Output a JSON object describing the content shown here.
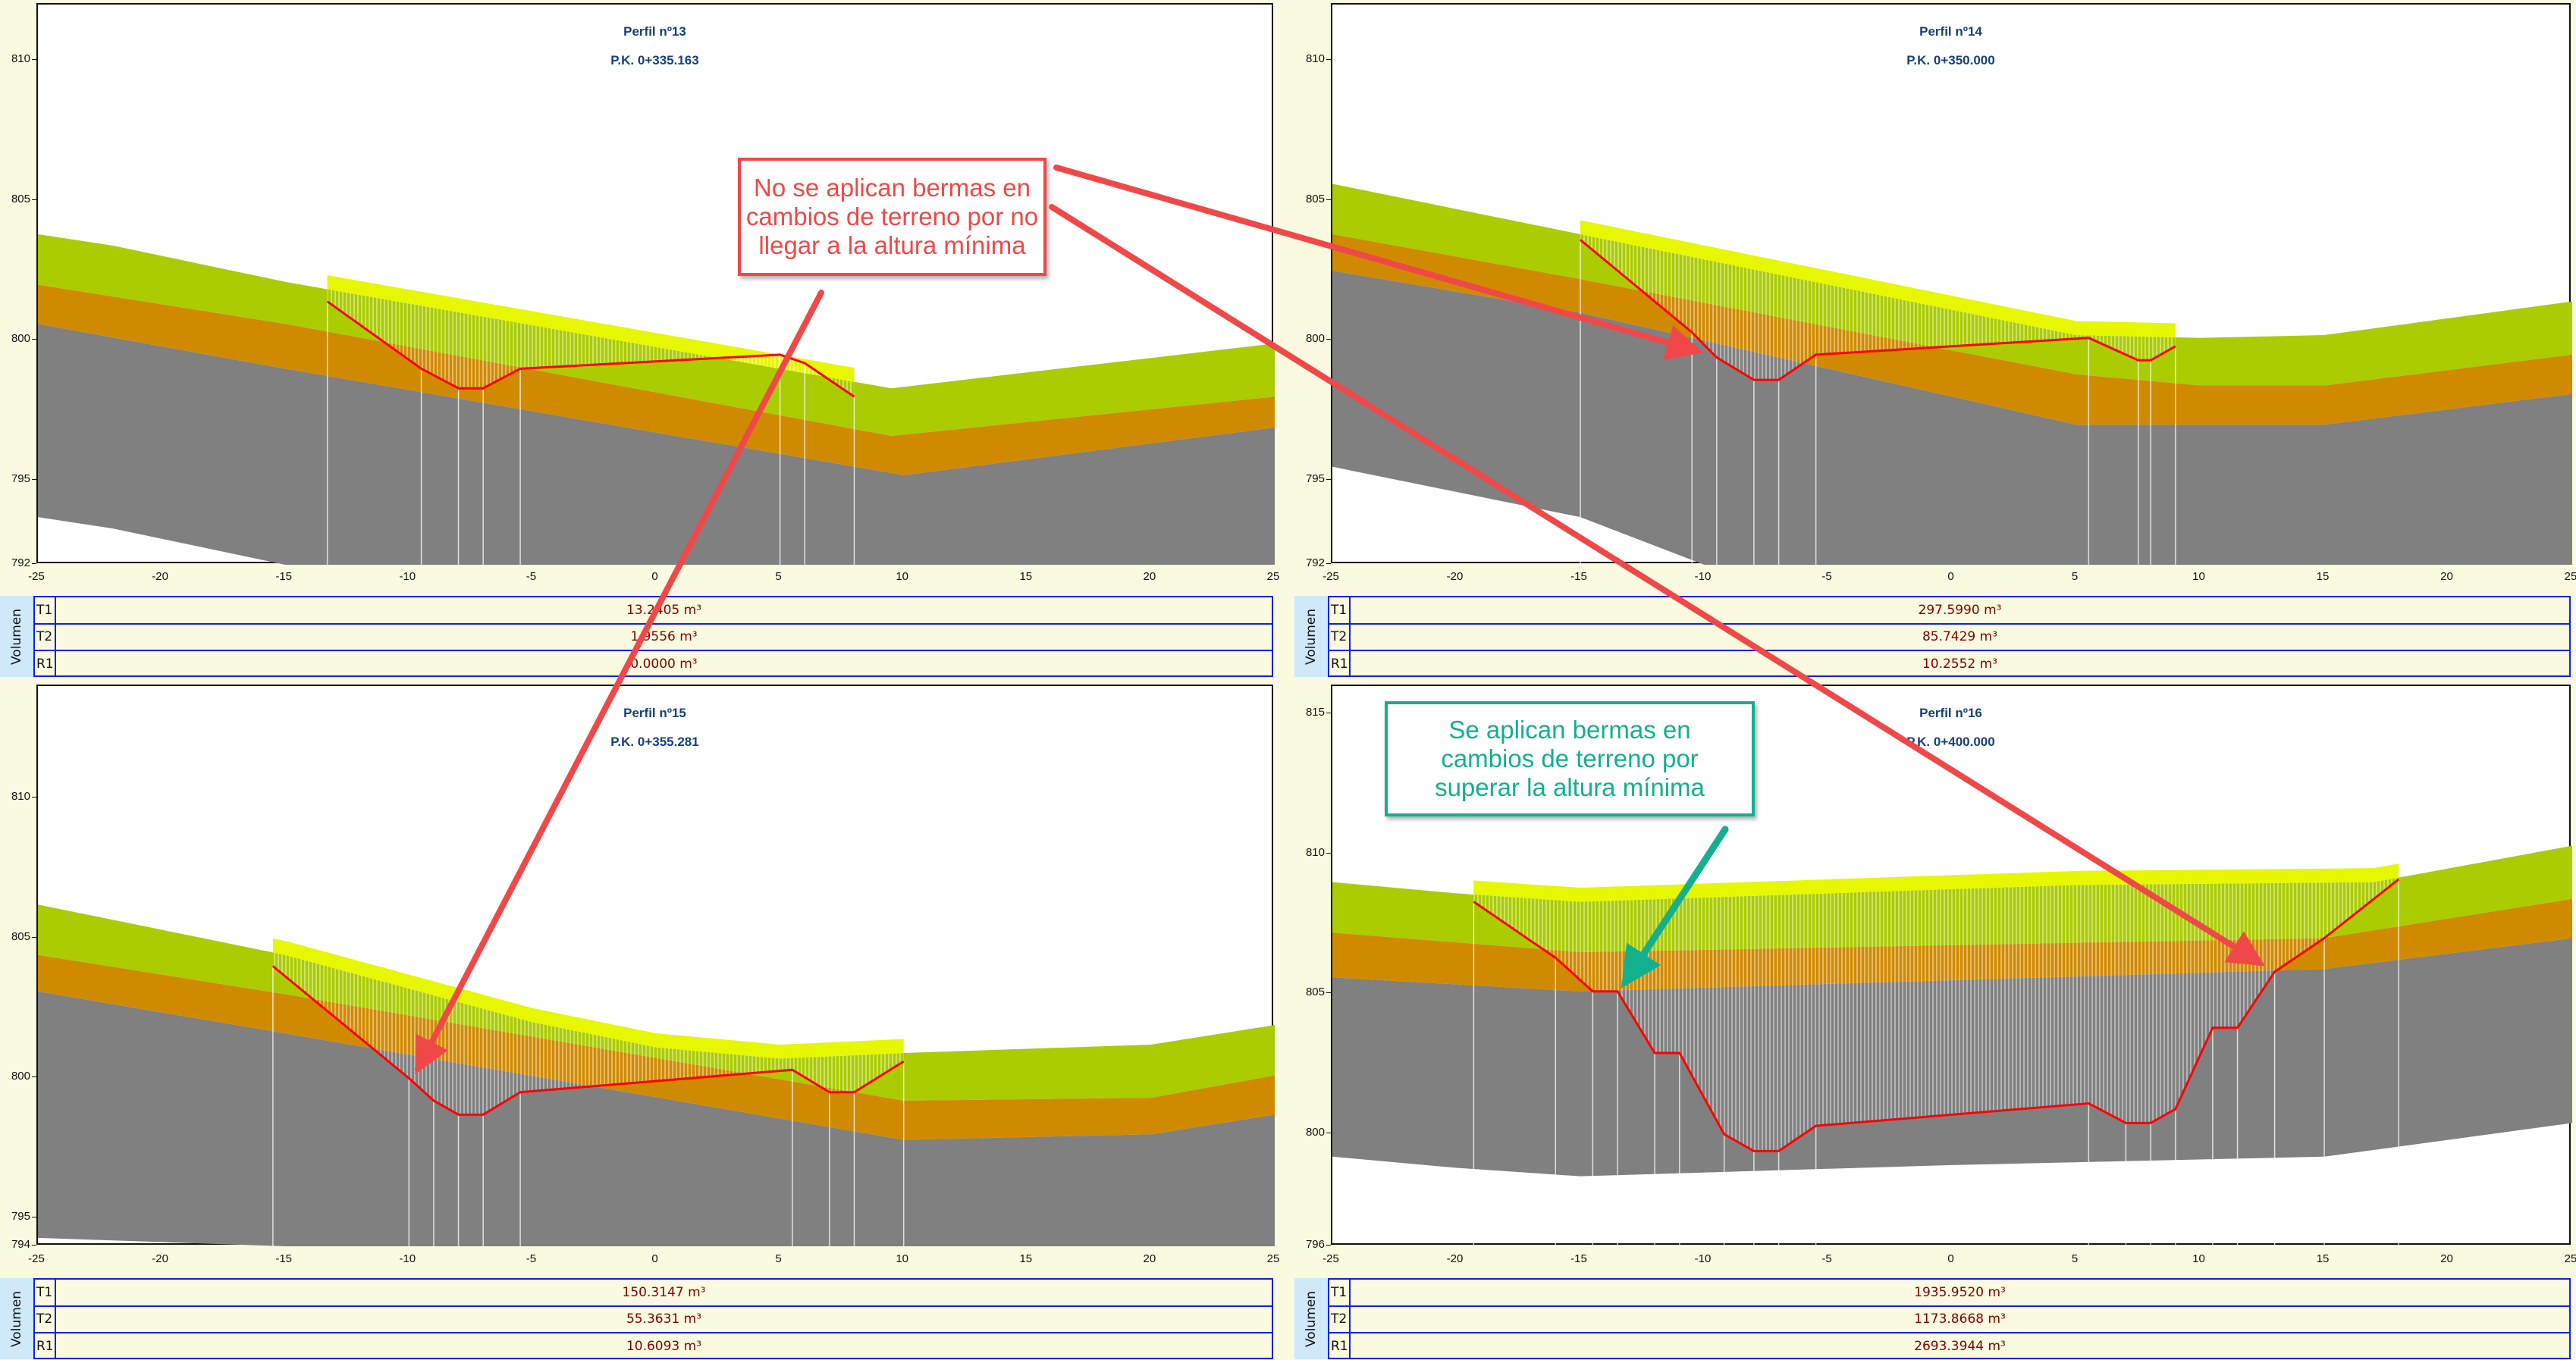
{
  "colors": {
    "green": "#aacc00",
    "orange": "#d08a00",
    "gray": "#808080",
    "yellow": "#e6f700",
    "design": "#ff0000",
    "annotation_red": "#f04848",
    "annotation_green": "#12b08e",
    "title": "#14407a",
    "volume": "#800000"
  },
  "volume_label": "Volumen",
  "annotations": {
    "red_note": "No se aplican bermas en cambios de terreno por no llegar a la altura mínima",
    "green_note": "Se aplican bermas en cambios de terreno por superar la altura mínima"
  },
  "chart_data": [
    {
      "type": "cross-section",
      "title": "Perfil nº13",
      "subtitle": "P.K. 0+335.163",
      "xlim": [
        -25,
        25
      ],
      "ylim": [
        792,
        812
      ],
      "xticks": [
        -25,
        -20,
        -15,
        -10,
        -5,
        0,
        5,
        10,
        15,
        20,
        25
      ],
      "yticks": [
        810,
        805,
        800,
        795,
        792
      ],
      "green_top": [
        [
          -25,
          803.8
        ],
        [
          -22,
          803.4
        ],
        [
          -15,
          802.1
        ],
        [
          9.5,
          798.3
        ],
        [
          25,
          799.9
        ]
      ],
      "orange_top": [
        [
          -25,
          802.0
        ],
        [
          -15,
          800.6
        ],
        [
          9.5,
          796.6
        ],
        [
          25,
          798.0
        ]
      ],
      "gray_top": [
        [
          -25,
          800.6
        ],
        [
          -15,
          799.0
        ],
        [
          10,
          795.2
        ],
        [
          25,
          796.9
        ]
      ],
      "gray_bottom": [
        [
          -25,
          793.7
        ],
        [
          -22,
          793.3
        ],
        [
          -15,
          792.0
        ],
        [
          25,
          792.0
        ]
      ],
      "design": [
        [
          -13.3,
          801.4
        ],
        [
          -9.5,
          799.0
        ],
        [
          -8,
          798.3
        ],
        [
          -7,
          798.3
        ],
        [
          -5.5,
          799.0
        ],
        [
          5,
          799.5
        ],
        [
          6,
          799.2
        ],
        [
          8,
          798.0
        ]
      ],
      "volumes": [
        {
          "key": "T1",
          "value": "13.2405 m³"
        },
        {
          "key": "T2",
          "value": "1.9556 m³"
        },
        {
          "key": "R1",
          "value": "0.0000 m³"
        }
      ]
    },
    {
      "type": "cross-section",
      "title": "Perfil nº14",
      "subtitle": "P.K. 0+350.000",
      "xlim": [
        -25,
        25
      ],
      "ylim": [
        792,
        812
      ],
      "xticks": [
        -25,
        -20,
        -15,
        -10,
        -5,
        0,
        5,
        10,
        15,
        20,
        25
      ],
      "yticks": [
        810,
        805,
        800,
        795,
        792
      ],
      "green_top": [
        [
          -25,
          805.6
        ],
        [
          -15,
          803.8
        ],
        [
          5,
          800.2
        ],
        [
          10,
          800.1
        ],
        [
          15,
          800.2
        ],
        [
          25,
          801.4
        ]
      ],
      "orange_top": [
        [
          -25,
          803.8
        ],
        [
          -15,
          802.2
        ],
        [
          5,
          798.8
        ],
        [
          10,
          798.4
        ],
        [
          15,
          798.4
        ],
        [
          25,
          799.5
        ]
      ],
      "gray_top": [
        [
          -25,
          802.5
        ],
        [
          -15,
          801.0
        ],
        [
          5,
          797.0
        ],
        [
          15,
          797.0
        ],
        [
          25,
          798.1
        ]
      ],
      "gray_bottom": [
        [
          -25,
          795.5
        ],
        [
          -15,
          793.7
        ],
        [
          -10,
          792.0
        ],
        [
          25,
          792.0
        ]
      ],
      "design": [
        [
          -15,
          803.6
        ],
        [
          -10.5,
          800.3
        ],
        [
          -9.5,
          799.4
        ],
        [
          -8,
          798.6
        ],
        [
          -7,
          798.6
        ],
        [
          -5.5,
          799.5
        ],
        [
          5.5,
          800.1
        ],
        [
          7.5,
          799.3
        ],
        [
          8,
          799.3
        ],
        [
          9,
          799.8
        ]
      ],
      "volumes": [
        {
          "key": "T1",
          "value": "297.5990 m³"
        },
        {
          "key": "T2",
          "value": "85.7429 m³"
        },
        {
          "key": "R1",
          "value": "10.2552 m³"
        }
      ]
    },
    {
      "type": "cross-section",
      "title": "Perfil nº15",
      "subtitle": "P.K. 0+355.281",
      "xlim": [
        -25,
        25
      ],
      "ylim": [
        794,
        814
      ],
      "xticks": [
        -25,
        -20,
        -15,
        -10,
        -5,
        0,
        5,
        10,
        15,
        20,
        25
      ],
      "yticks": [
        810,
        805,
        800,
        795,
        794
      ],
      "green_top": [
        [
          -25,
          806.2
        ],
        [
          -15,
          804.4
        ],
        [
          -5,
          802.0
        ],
        [
          0,
          801.1
        ],
        [
          5,
          800.7
        ],
        [
          10,
          800.9
        ],
        [
          20,
          801.2
        ],
        [
          25,
          801.9
        ]
      ],
      "orange_top": [
        [
          -25,
          804.4
        ],
        [
          -15,
          803.0
        ],
        [
          10,
          799.2
        ],
        [
          20,
          799.3
        ],
        [
          25,
          800.1
        ]
      ],
      "gray_top": [
        [
          -25,
          803.1
        ],
        [
          -15,
          801.6
        ],
        [
          10,
          797.8
        ],
        [
          20,
          798.0
        ],
        [
          25,
          798.7
        ]
      ],
      "gray_bottom": [
        [
          -25,
          794.3
        ],
        [
          -15,
          794.0
        ],
        [
          25,
          794.0
        ]
      ],
      "design": [
        [
          -15.5,
          804.0
        ],
        [
          -10,
          800.0
        ],
        [
          -9,
          799.2
        ],
        [
          -8,
          798.7
        ],
        [
          -7,
          798.7
        ],
        [
          -5.5,
          799.5
        ],
        [
          5.5,
          800.3
        ],
        [
          7,
          799.5
        ],
        [
          8,
          799.5
        ],
        [
          10,
          800.6
        ]
      ],
      "volumes": [
        {
          "key": "T1",
          "value": "150.3147 m³"
        },
        {
          "key": "T2",
          "value": "55.3631 m³"
        },
        {
          "key": "R1",
          "value": "10.6093 m³"
        }
      ]
    },
    {
      "type": "cross-section",
      "title": "Perfil nº16",
      "subtitle": "P.K. 0+400.000",
      "xlim": [
        -25,
        25
      ],
      "ylim": [
        796,
        816
      ],
      "xticks": [
        -25,
        -20,
        -15,
        -10,
        -5,
        0,
        5,
        10,
        15,
        20,
        25
      ],
      "yticks": [
        815,
        810,
        805,
        800,
        796
      ],
      "green_top": [
        [
          -25,
          809.0
        ],
        [
          -20,
          808.6
        ],
        [
          -15,
          808.3
        ],
        [
          5,
          808.9
        ],
        [
          17,
          809.0
        ],
        [
          25,
          810.3
        ]
      ],
      "orange_top": [
        [
          -25,
          807.2
        ],
        [
          -15,
          806.5
        ],
        [
          15,
          807.0
        ],
        [
          25,
          808.4
        ]
      ],
      "gray_top": [
        [
          -25,
          805.6
        ],
        [
          -15,
          805.1
        ],
        [
          15,
          805.9
        ],
        [
          25,
          807.0
        ]
      ],
      "gray_bottom": [
        [
          -25,
          799.2
        ],
        [
          -20,
          798.8
        ],
        [
          -15,
          798.5
        ],
        [
          0,
          798.9
        ],
        [
          15,
          799.2
        ],
        [
          25,
          800.4
        ]
      ],
      "design": [
        [
          -19.3,
          808.3
        ],
        [
          -16,
          806.3
        ],
        [
          -14.5,
          805.1
        ],
        [
          -13.5,
          805.1
        ],
        [
          -12,
          802.9
        ],
        [
          -11,
          802.9
        ],
        [
          -9.2,
          800.0
        ],
        [
          -8,
          799.4
        ],
        [
          -7,
          799.4
        ],
        [
          -5.5,
          800.3
        ],
        [
          5.5,
          801.1
        ],
        [
          7,
          800.4
        ],
        [
          8,
          800.4
        ],
        [
          9,
          800.9
        ],
        [
          10.5,
          803.8
        ],
        [
          11.5,
          803.8
        ],
        [
          13,
          805.8
        ],
        [
          15,
          807.0
        ],
        [
          18,
          809.1
        ]
      ],
      "volumes": [
        {
          "key": "T1",
          "value": "1935.9520 m³"
        },
        {
          "key": "T2",
          "value": "1173.8668 m³"
        },
        {
          "key": "R1",
          "value": "2693.3944 m³"
        }
      ]
    }
  ]
}
